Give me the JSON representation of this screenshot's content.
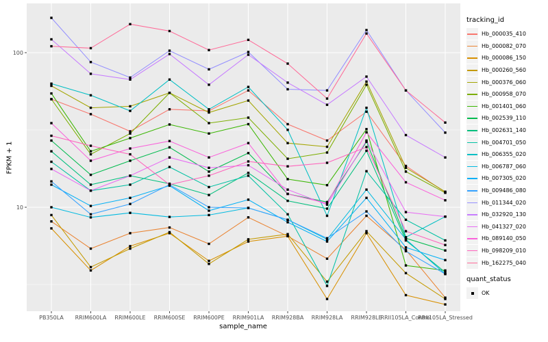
{
  "figure": {
    "y_axis": {
      "title": "FPKM + 1",
      "ticks": [
        {
          "label": "100",
          "value": 100
        },
        {
          "label": "10",
          "value": 10
        }
      ]
    },
    "x_axis": {
      "title": "sample_name"
    },
    "legend": {
      "tracking_title": "tracking_id",
      "quant_title": "quant_status",
      "quant_ok_label": "OK"
    },
    "colors": {
      "panel_bg": "#EBEBEB",
      "grid": "#FFFFFF",
      "tick": "#333333",
      "tick_text": "#4D4D4D",
      "point": "#000000"
    }
  },
  "chart_data": {
    "type": "line",
    "title": "",
    "xlabel": "sample_name",
    "ylabel": "FPKM + 1",
    "y_scale": "log10",
    "ylim": [
      2.05,
      208
    ],
    "grid": "on",
    "legend_position": "right",
    "x_categories": [
      "PB350LA",
      "RRIM600LA",
      "RRIM600LE",
      "RRIM600SE",
      "RRIM600PE",
      "RRIM901LA",
      "RRIM928BA",
      "RRIM928LA",
      "RRIM928LE",
      "RRII105LA_Control",
      "RRII105LA_Stressed"
    ],
    "series": [
      {
        "name": "Hb_000035_410",
        "color": "#F8766D",
        "values": [
          50,
          40,
          31,
          43,
          42,
          57,
          34.5,
          27,
          41.5,
          18.5,
          12.5
        ]
      },
      {
        "name": "Hb_000082_070",
        "color": "#EA8331",
        "values": [
          8.1,
          5.4,
          6.8,
          7.4,
          5.8,
          8.6,
          6.5,
          4.65,
          8.8,
          5.3,
          2.6
        ]
      },
      {
        "name": "Hb_000086_150",
        "color": "#D89000",
        "values": [
          7.3,
          3.9,
          5.6,
          6.8,
          4.5,
          6.0,
          6.5,
          2.55,
          6.8,
          2.7,
          2.35
        ]
      },
      {
        "name": "Hb_000260_560",
        "color": "#C49A00",
        "values": [
          8.9,
          4.1,
          5.4,
          6.9,
          4.3,
          6.2,
          6.7,
          3.3,
          7.0,
          3.75,
          2.55
        ]
      },
      {
        "name": "Hb_000376_060",
        "color": "#A3A500",
        "values": [
          61,
          44,
          45,
          55,
          41,
          49,
          26,
          24.6,
          65,
          18,
          12.6
        ]
      },
      {
        "name": "Hb_000958_070",
        "color": "#7CAE00",
        "values": [
          50,
          22,
          30,
          55,
          35,
          38,
          20.6,
          22.6,
          62,
          17,
          12.4
        ]
      },
      {
        "name": "Hb_001401_060",
        "color": "#39B600",
        "values": [
          54.5,
          23,
          28,
          34.3,
          30,
          34.5,
          15.2,
          13.9,
          32,
          4.2,
          3.9
        ]
      },
      {
        "name": "Hb_002539_110",
        "color": "#00BB4E",
        "values": [
          27,
          16.2,
          20,
          24.4,
          17,
          22.4,
          12.2,
          10.8,
          26.5,
          6.3,
          5.25
        ]
      },
      {
        "name": "Hb_002631_140",
        "color": "#00BF7D",
        "values": [
          23,
          14,
          16,
          14.2,
          12,
          16.7,
          11,
          9.8,
          23.2,
          6.1,
          3.8
        ]
      },
      {
        "name": "Hb_004701_050",
        "color": "#00C1A3",
        "values": [
          19.7,
          12.8,
          14,
          18.2,
          13.5,
          16,
          9,
          3.1,
          17.1,
          8.3,
          6.1
        ]
      },
      {
        "name": "Hb_006355_020",
        "color": "#00BFC4",
        "values": [
          63,
          53,
          42,
          67,
          43,
          60,
          31.7,
          8.8,
          44,
          6.4,
          8.7
        ]
      },
      {
        "name": "Hb_006787_060",
        "color": "#00BAE0",
        "values": [
          10,
          8.6,
          9.2,
          8.65,
          8.9,
          9.9,
          8.3,
          6.2,
          13,
          6.2,
          3.7
        ]
      },
      {
        "name": "Hb_007305_020",
        "color": "#00B0F6",
        "values": [
          14,
          10.2,
          11.5,
          13.8,
          9.5,
          11.2,
          8,
          6,
          11.5,
          5.5,
          4.55
        ]
      },
      {
        "name": "Hb_009486_080",
        "color": "#35A2FF",
        "values": [
          14.7,
          9,
          10.5,
          14,
          10,
          9.9,
          8.3,
          6.3,
          9.4,
          5.2,
          3.7
        ]
      },
      {
        "name": "Hb_011344_020",
        "color": "#9590FF",
        "values": [
          168,
          87,
          69,
          103,
          78,
          101,
          58,
          57,
          140,
          57,
          30.4
        ]
      },
      {
        "name": "Hb_032920_130",
        "color": "#C77CFF",
        "values": [
          122,
          73,
          67,
          98,
          62,
          97,
          64,
          46,
          70,
          29.3,
          21
        ]
      },
      {
        "name": "Hb_041327_020",
        "color": "#E76BF3",
        "values": [
          17.7,
          12.8,
          16,
          21,
          18,
          18.7,
          13,
          10.4,
          27,
          9.3,
          8.7
        ]
      },
      {
        "name": "Hb_089140_050",
        "color": "#FA62DB",
        "values": [
          35,
          20,
          24,
          26.8,
          21,
          26,
          12.2,
          10.6,
          30.5,
          14.5,
          11.1
        ]
      },
      {
        "name": "Hb_098209_010",
        "color": "#FF62BC",
        "values": [
          29,
          25,
          22,
          14,
          16,
          19.8,
          18.4,
          19.4,
          24.5,
          7,
          5.7
        ]
      },
      {
        "name": "Hb_162275_040",
        "color": "#FF6A98",
        "values": [
          110,
          107,
          153,
          138,
          104,
          121,
          85,
          50.5,
          133,
          57,
          35.3
        ]
      }
    ],
    "quant_status": {
      "title": "quant_status",
      "items": [
        "OK"
      ],
      "point_shape": "filled-square",
      "point_color": "#000000"
    }
  }
}
